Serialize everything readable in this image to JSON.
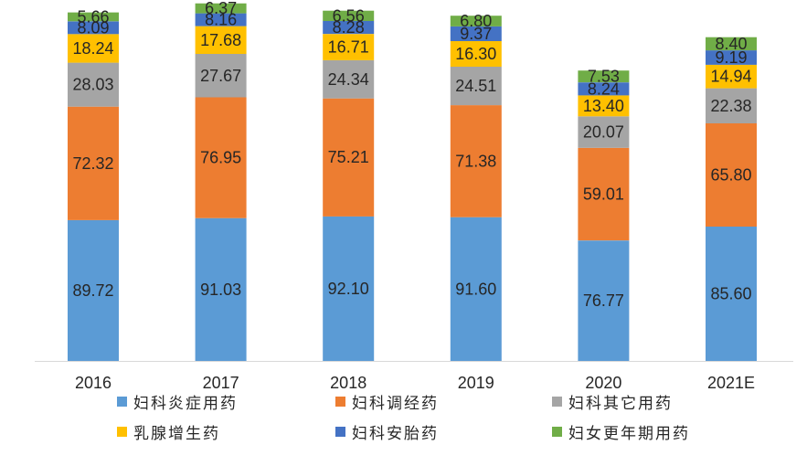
{
  "chart_data": {
    "type": "bar",
    "stacked": true,
    "title": "",
    "xlabel": "",
    "ylabel": "",
    "grid": false,
    "legend_position": "bottom",
    "categories": [
      "2016",
      "2017",
      "2018",
      "2019",
      "2020",
      "2021E"
    ],
    "ylim": [
      0,
      230
    ],
    "series": [
      {
        "name": "妇科炎症用药",
        "color": "#5B9BD5",
        "values": [
          89.72,
          91.03,
          92.1,
          91.6,
          76.77,
          85.6
        ],
        "labels": [
          "89.72",
          "91.03",
          "92.10",
          "91.60",
          "76.77",
          "85.60"
        ]
      },
      {
        "name": "妇科调经药",
        "color": "#ED7D31",
        "values": [
          72.32,
          76.95,
          75.21,
          71.38,
          59.01,
          65.8
        ],
        "labels": [
          "72.32",
          "76.95",
          "75.21",
          "71.38",
          "59.01",
          "65.80"
        ]
      },
      {
        "name": "妇科其它用药",
        "color": "#A5A5A5",
        "values": [
          28.03,
          27.67,
          24.34,
          24.51,
          20.07,
          22.38
        ],
        "labels": [
          "28.03",
          "27.67",
          "24.34",
          "24.51",
          "20.07",
          "22.38"
        ]
      },
      {
        "name": "乳腺增生药",
        "color": "#FFC000",
        "values": [
          18.24,
          17.68,
          16.71,
          16.3,
          13.4,
          14.94
        ],
        "labels": [
          "18.24",
          "17.68",
          "16.71",
          "16.30",
          "13.40",
          "14.94"
        ]
      },
      {
        "name": "妇科安胎药",
        "color": "#4472C4",
        "values": [
          8.09,
          8.16,
          8.28,
          9.37,
          8.24,
          9.19
        ],
        "labels": [
          "8.09",
          "8.16",
          "8.28",
          "9.37",
          "8.24",
          "9.19"
        ]
      },
      {
        "name": "妇女更年期用药",
        "color": "#70AD47",
        "values": [
          5.66,
          6.37,
          6.56,
          6.8,
          7.53,
          8.4
        ],
        "labels": [
          "5.66",
          "6.37",
          "6.56",
          "6.80",
          "7.53",
          "8.40"
        ]
      }
    ]
  }
}
